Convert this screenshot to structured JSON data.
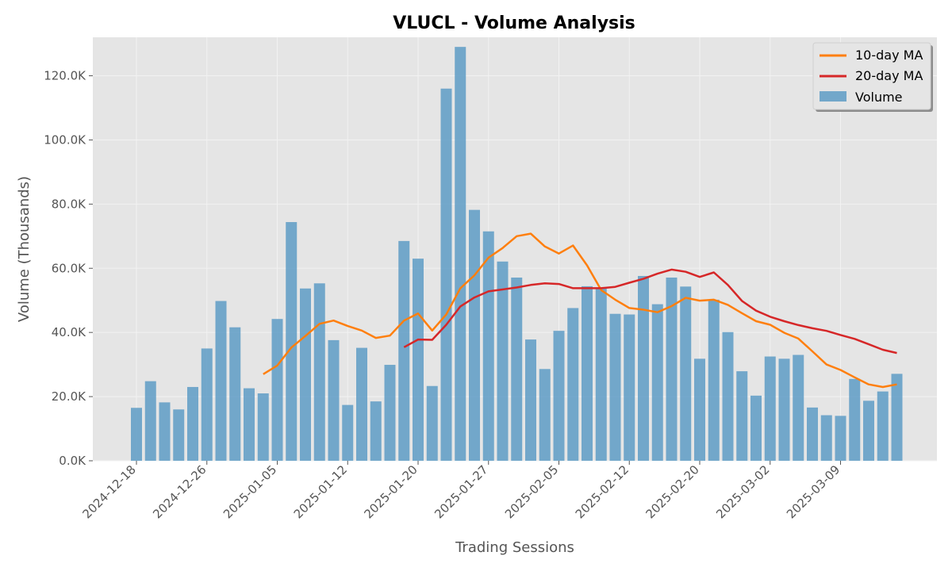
{
  "chart_data": {
    "type": "bar",
    "title": "VLUCL - Volume Analysis",
    "xlabel": "Trading Sessions",
    "ylabel": "Volume (Thousands)",
    "ylim": [
      0,
      132000
    ],
    "y_ticks": [
      0,
      20000,
      40000,
      60000,
      80000,
      100000,
      120000
    ],
    "y_tick_labels": [
      "0.0K",
      "20.0K",
      "40.0K",
      "60.0K",
      "80.0K",
      "100.0K",
      "120.0K"
    ],
    "x_tick_labels": [
      "2024-12-18",
      "2024-12-26",
      "2025-01-05",
      "2025-01-12",
      "2025-01-20",
      "2025-01-27",
      "2025-02-05",
      "2025-02-12",
      "2025-02-20",
      "2025-03-02",
      "2025-03-09"
    ],
    "x_tick_index": [
      0,
      5,
      10,
      15,
      20,
      25,
      30,
      35,
      40,
      45,
      50
    ],
    "grid": true,
    "legend": {
      "position": "top-right",
      "entries": [
        "10-day MA",
        "20-day MA",
        "Volume"
      ]
    },
    "colors": {
      "volume": "#5e9cc6",
      "ma10": "#ff7f0e",
      "ma20": "#d62728",
      "plot_bg": "#e5e5e5",
      "grid": "#f2f2f2"
    },
    "series": [
      {
        "name": "Volume",
        "type": "bar",
        "values": [
          16500,
          24800,
          18200,
          16000,
          23000,
          35000,
          49800,
          41600,
          22600,
          21000,
          44200,
          74400,
          53700,
          55300,
          37600,
          17400,
          35200,
          18500,
          29900,
          68500,
          63000,
          23300,
          116000,
          129000,
          78200,
          71500,
          62100,
          57100,
          37800,
          28600,
          40500,
          47600,
          54400,
          53900,
          45800,
          45600,
          57600,
          48800,
          57100,
          54300,
          31800,
          50200,
          40100,
          27900,
          20300,
          32500,
          31800,
          33000,
          16600,
          14200,
          14000,
          25500,
          18700,
          21600,
          27100
        ]
      },
      {
        "name": "10-day MA",
        "type": "line",
        "values": [
          null,
          null,
          null,
          null,
          null,
          null,
          null,
          null,
          null,
          27000,
          29700,
          35300,
          38900,
          42700,
          43700,
          42000,
          40600,
          38300,
          39000,
          43700,
          45900,
          40600,
          45600,
          53800,
          57800,
          63300,
          66300,
          70000,
          70800,
          66800,
          64600,
          67100,
          60900,
          53200,
          50200,
          47600,
          47100,
          46300,
          48200,
          50800,
          49900,
          50200,
          48600,
          46000,
          43500,
          42400,
          39900,
          38100,
          34100,
          30000,
          28300,
          26000,
          23800,
          23000,
          23800
        ]
      },
      {
        "name": "20-day MA",
        "type": "line",
        "values": [
          null,
          null,
          null,
          null,
          null,
          null,
          null,
          null,
          null,
          null,
          null,
          null,
          null,
          null,
          null,
          null,
          null,
          null,
          null,
          35400,
          37800,
          37700,
          42400,
          48100,
          50900,
          52800,
          53400,
          54000,
          54800,
          55300,
          55100,
          53800,
          53800,
          53800,
          54200,
          55500,
          56700,
          58300,
          59600,
          58900,
          57300,
          58700,
          54800,
          49800,
          46800,
          44900,
          43500,
          42300,
          41300,
          40500,
          39200,
          38000,
          36300,
          34600,
          33600
        ]
      }
    ]
  }
}
